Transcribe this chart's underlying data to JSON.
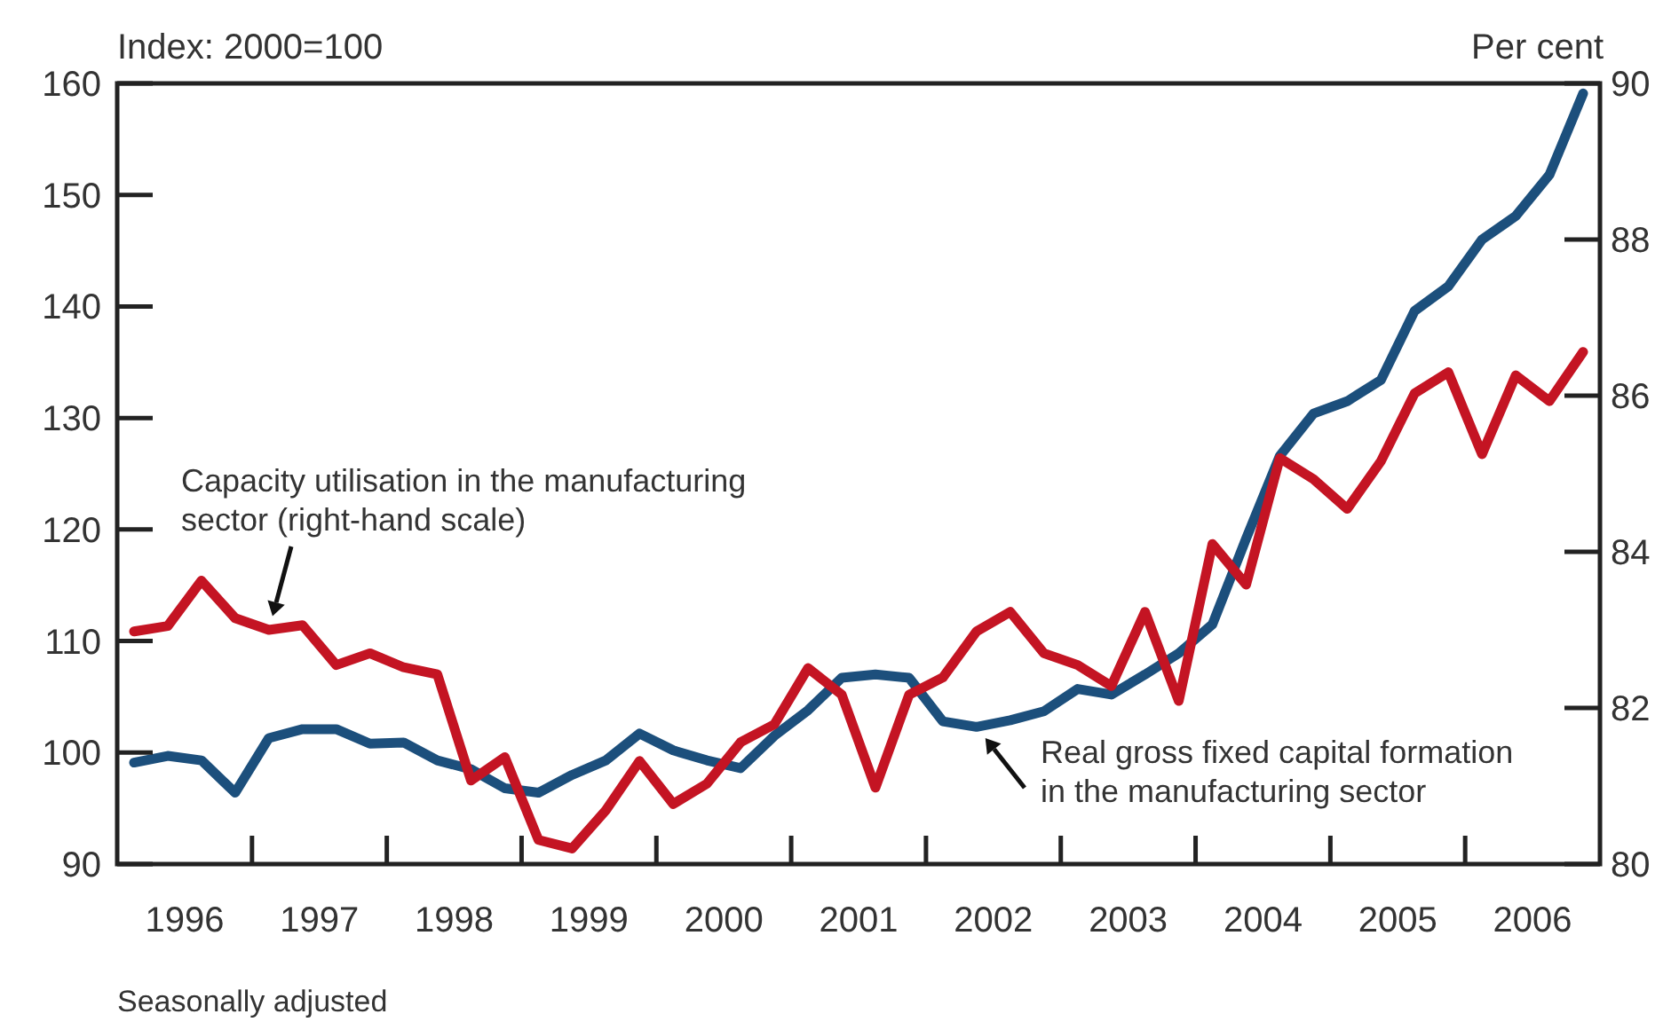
{
  "chart_data": {
    "type": "line",
    "ylabel": "Index: 2000=100",
    "y2label": "Per cent",
    "x": [
      1996.125,
      1996.375,
      1996.625,
      1996.875,
      1997.125,
      1997.375,
      1997.625,
      1997.875,
      1998.125,
      1998.375,
      1998.625,
      1998.875,
      1999.125,
      1999.375,
      1999.625,
      1999.875,
      2000.125,
      2000.375,
      2000.625,
      2000.875,
      2001.125,
      2001.375,
      2001.625,
      2001.875,
      2002.125,
      2002.375,
      2002.625,
      2002.875,
      2003.125,
      2003.375,
      2003.625,
      2003.875,
      2004.125,
      2004.375,
      2004.625,
      2004.875,
      2005.125,
      2005.375,
      2005.625,
      2005.875,
      2006.125,
      2006.375,
      2006.625,
      2006.875
    ],
    "xlim": [
      1996,
      2007
    ],
    "xticks": [
      {
        "value": 1996.5,
        "label": "1996"
      },
      {
        "value": 1997,
        "label": null
      },
      {
        "value": 1997.5,
        "label": "1997"
      },
      {
        "value": 1998,
        "label": null
      },
      {
        "value": 1998.5,
        "label": "1998"
      },
      {
        "value": 1999,
        "label": null
      },
      {
        "value": 1999.5,
        "label": "1999"
      },
      {
        "value": 2000,
        "label": null
      },
      {
        "value": 2000.5,
        "label": "2000"
      },
      {
        "value": 2001,
        "label": null
      },
      {
        "value": 2001.5,
        "label": "2001"
      },
      {
        "value": 2002,
        "label": null
      },
      {
        "value": 2002.5,
        "label": "2002"
      },
      {
        "value": 2003,
        "label": null
      },
      {
        "value": 2003.5,
        "label": "2003"
      },
      {
        "value": 2004,
        "label": null
      },
      {
        "value": 2004.5,
        "label": "2004"
      },
      {
        "value": 2005,
        "label": null
      },
      {
        "value": 2005.5,
        "label": "2005"
      },
      {
        "value": 2006,
        "label": null
      },
      {
        "value": 2006.5,
        "label": "2006"
      }
    ],
    "ylim": [
      90,
      160
    ],
    "yticks": [
      90,
      100,
      110,
      120,
      130,
      140,
      150,
      160
    ],
    "y2lim": [
      80,
      90
    ],
    "y2ticks": [
      80,
      82,
      84,
      86,
      88,
      90
    ],
    "series": [
      {
        "name": "Real gross fixed capital formation in the manufacturing sector",
        "color": "#1c4f7c",
        "values": [
          99.1,
          99.7,
          99.3,
          96.4,
          101.3,
          102.1,
          102.1,
          100.8,
          100.9,
          99.3,
          98.5,
          96.8,
          96.4,
          98.0,
          99.3,
          101.7,
          100.2,
          99.3,
          98.6,
          101.5,
          103.8,
          106.7,
          107.0,
          106.7,
          102.8,
          102.3,
          102.9,
          103.7,
          105.7,
          105.2,
          107.0,
          108.9,
          111.5,
          119.2,
          126.6,
          130.4,
          131.5,
          133.4,
          139.6,
          141.8,
          146.0,
          148.1,
          151.8,
          159.1
        ]
      },
      {
        "name": "Capacity utilisation in the manufacturing sector (right-hand scale)",
        "color": "#c41423",
        "axis": "y2",
        "values": [
          82.98,
          83.05,
          83.63,
          83.15,
          83.0,
          83.06,
          82.55,
          82.7,
          82.52,
          82.43,
          81.07,
          81.37,
          80.31,
          80.2,
          80.69,
          81.32,
          80.77,
          81.03,
          81.56,
          81.79,
          82.51,
          82.17,
          80.98,
          82.17,
          82.39,
          82.98,
          83.23,
          82.7,
          82.55,
          82.28,
          83.23,
          82.09,
          84.1,
          83.58,
          85.2,
          84.93,
          84.55,
          85.16,
          86.03,
          86.3,
          85.25,
          86.26,
          85.93,
          86.56
        ]
      }
    ],
    "annotations": [
      "Seasonally adjusted"
    ],
    "grid": false,
    "line_style": "solid",
    "marker": "none"
  }
}
